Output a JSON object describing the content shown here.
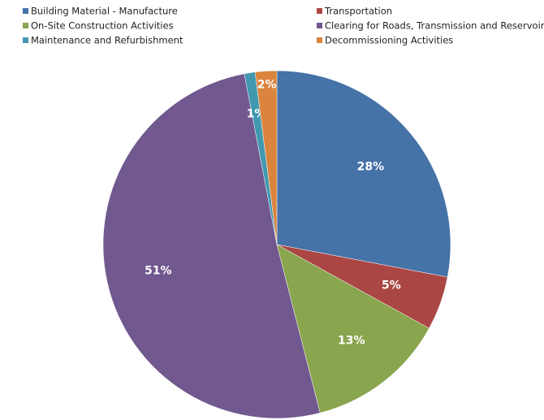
{
  "chart_data": {
    "type": "pie",
    "categories": [
      "Building Material - Manufacture",
      "Transportation",
      "On-Site Construction Activities",
      "Clearing for Roads, Transmission and Reservoir",
      "Maintenance and Refurbishment",
      "Decommissioning Activities"
    ],
    "values": [
      28,
      5,
      13,
      51,
      1,
      2
    ],
    "value_labels": [
      "28%",
      "5%",
      "13%",
      "51%",
      "1%",
      "2%"
    ],
    "colors": [
      "#4572a7",
      "#aa4643",
      "#89a54e",
      "#71588f",
      "#4198af",
      "#db843d"
    ],
    "legend": "top"
  }
}
